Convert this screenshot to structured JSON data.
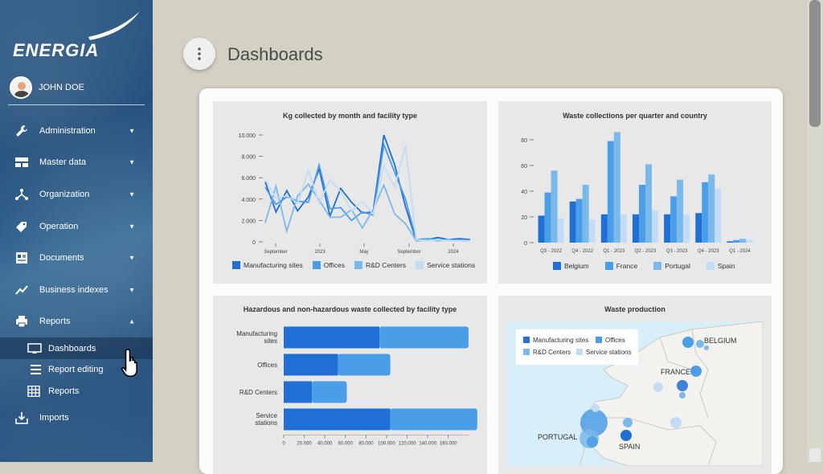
{
  "app": {
    "logo": "ENERGIA",
    "user_name": "JOHN DOE"
  },
  "sidebar": {
    "items": [
      {
        "label": "Administration",
        "icon": "wrench-icon"
      },
      {
        "label": "Master data",
        "icon": "table-icon"
      },
      {
        "label": "Organization",
        "icon": "network-icon"
      },
      {
        "label": "Operation",
        "icon": "tag-icon"
      },
      {
        "label": "Documents",
        "icon": "document-icon"
      },
      {
        "label": "Business indexes",
        "icon": "trend-icon"
      },
      {
        "label": "Reports",
        "icon": "printer-icon"
      }
    ],
    "report_subitems": [
      {
        "label": "Dashboards",
        "icon": "monitor-icon"
      },
      {
        "label": "Report editing",
        "icon": "list-icon"
      },
      {
        "label": "Reports",
        "icon": "grid-icon"
      }
    ],
    "imports": {
      "label": "Imports",
      "icon": "import-icon"
    }
  },
  "header": {
    "title": "Dashboards"
  },
  "colors": {
    "c1": "#1f6fd6",
    "c2": "#4a9ee8",
    "c3": "#7ab9ea",
    "c4": "#c3dcf6"
  },
  "chart_data": [
    {
      "type": "line",
      "title": "Kg collected by month and facility type",
      "x_ticks": [
        "September",
        "2023",
        "May",
        "September",
        "2024"
      ],
      "y_ticks": [
        "0",
        "2.000",
        "4.000",
        "6.000",
        "8.000",
        "10.000"
      ],
      "ylim": [
        0,
        10000
      ],
      "series": [
        {
          "name": "Manufacturing sites",
          "values": [
            5600,
            2800,
            4800,
            2900,
            4200,
            6800,
            2400,
            5000,
            3700,
            2700,
            2800,
            10000,
            7200,
            3300,
            100,
            200,
            400,
            200,
            300,
            200
          ]
        },
        {
          "name": "Offices",
          "values": [
            5100,
            3500,
            4200,
            3800,
            3700,
            7200,
            3100,
            3200,
            2000,
            2800,
            2500,
            9100,
            6500,
            4000,
            200,
            300,
            200,
            100,
            200,
            100
          ]
        },
        {
          "name": "R&D Centers",
          "values": [
            1800,
            5200,
            1000,
            4300,
            5400,
            3900,
            2300,
            2300,
            3000,
            1300,
            3000,
            5300,
            2600,
            1700,
            100,
            200,
            100,
            200,
            100,
            100
          ]
        },
        {
          "name": "Service stations",
          "values": [
            5800,
            4100,
            4300,
            3600,
            6700,
            3600,
            5800,
            4700,
            2900,
            3800,
            2600,
            7100,
            5100,
            9000,
            200,
            100,
            200,
            100,
            100,
            100
          ]
        }
      ]
    },
    {
      "type": "bar",
      "title": "Waste collections per quarter and country",
      "categories": [
        "Q3 - 2022",
        "Q4 - 2022",
        "Q1 - 2023",
        "Q2 - 2023",
        "Q3 - 2023",
        "Q4 - 2023",
        "Q1 - 2024"
      ],
      "y_ticks": [
        "0",
        "20",
        "40",
        "60",
        "80"
      ],
      "ylim": [
        0,
        80
      ],
      "series": [
        {
          "name": "Belgium",
          "values": [
            21,
            32,
            22,
            22,
            22,
            23,
            1
          ]
        },
        {
          "name": "France",
          "values": [
            39,
            34,
            79,
            45,
            36,
            47,
            2
          ]
        },
        {
          "name": "Portugal",
          "values": [
            56,
            45,
            86,
            61,
            49,
            53,
            3
          ]
        },
        {
          "name": "Spain",
          "values": [
            19,
            18,
            22,
            25,
            22,
            42,
            2
          ]
        }
      ]
    },
    {
      "type": "bar",
      "orientation": "horizontal",
      "title": "Hazardous and non-hazardous waste collected by facility type",
      "categories": [
        "Manufacturing sites",
        "Offices",
        "R&D Centers",
        "Service stations"
      ],
      "x_ticks": [
        "0",
        "20.000",
        "40.000",
        "60.000",
        "80.000",
        "100.000",
        "120.000",
        "140.000",
        "160.000"
      ],
      "xlim": [
        0,
        170000
      ],
      "series": [
        {
          "values": [
            88000,
            50000,
            26000,
            98000
          ]
        },
        {
          "values": [
            82000,
            48000,
            32000,
            80000
          ]
        }
      ]
    }
  ],
  "map": {
    "title": "Waste production",
    "legend": [
      "Manufacturing sites",
      "Offices",
      "R&D Centers",
      "Service stations"
    ],
    "labels": [
      "BELGIUM",
      "FRANCE",
      "PORTUGAL",
      "SPAIN"
    ]
  }
}
